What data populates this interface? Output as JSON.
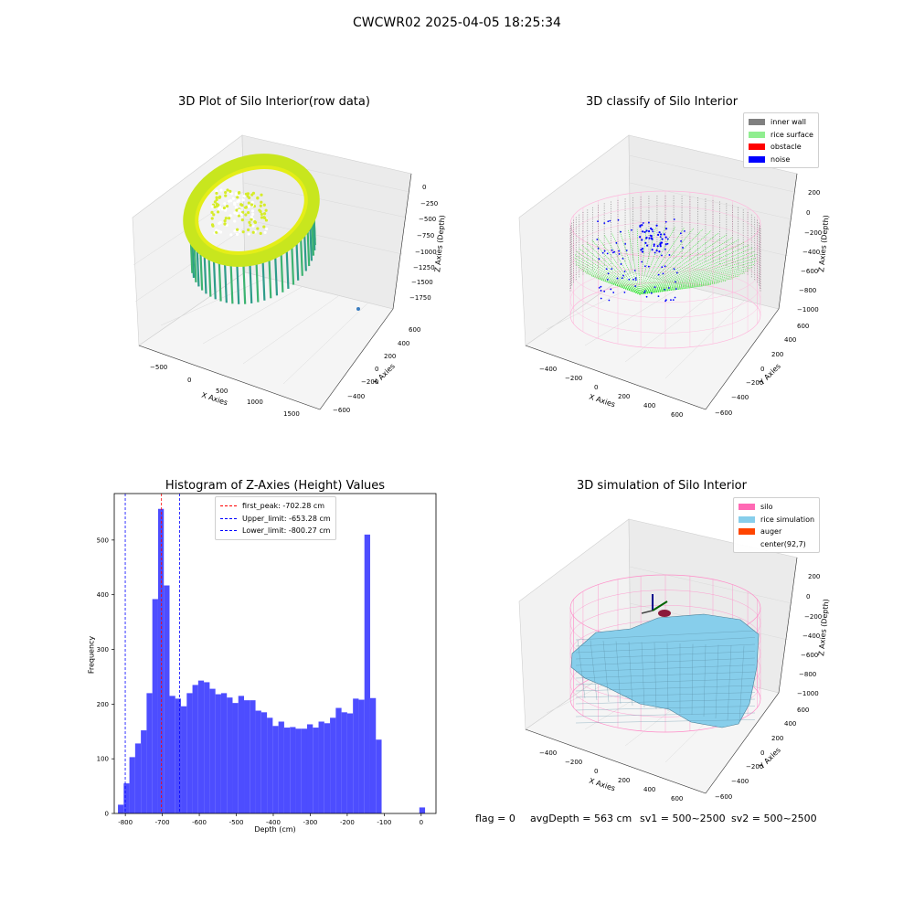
{
  "suptitle": "CWCWR02 2025-04-05 18:25:34",
  "panels": {
    "raw": {
      "title": "3D Plot of Silo Interior(row data)",
      "xlabel": "X Axies",
      "ylabel": "Y Axies",
      "zlabel": "Z Axies (Depth)",
      "xticks": [
        "−500",
        "0",
        "500",
        "1000",
        "1500"
      ],
      "yticks": [
        "600",
        "400",
        "200",
        "0",
        "−200",
        "−400",
        "−600"
      ],
      "zticks": [
        "0",
        "−250",
        "−500",
        "−750",
        "−1000",
        "−1250",
        "−1500",
        "−1750"
      ]
    },
    "classify": {
      "title": "3D classify of Silo Interior",
      "xlabel": "X Axies",
      "ylabel": "Y Axies",
      "zlabel": "Z Axies (Depth)",
      "xticks": [
        "−400",
        "−200",
        "0",
        "200",
        "400",
        "600"
      ],
      "yticks": [
        "600",
        "400",
        "200",
        "0",
        "−200",
        "−400",
        "−600"
      ],
      "zticks": [
        "200",
        "0",
        "−200",
        "−400",
        "−600",
        "−800",
        "−1000"
      ],
      "legend": [
        {
          "label": "inner wall",
          "color": "#808080"
        },
        {
          "label": "rice surface",
          "color": "#90ee90"
        },
        {
          "label": "obstacle",
          "color": "#ff0000"
        },
        {
          "label": "noise",
          "color": "#0000ff"
        }
      ]
    },
    "simulation": {
      "title": "3D simulation of Silo Interior",
      "xlabel": "X Axies",
      "ylabel": "Y Axies",
      "zlabel": "Z Axies (Depth)",
      "xticks": [
        "−400",
        "−200",
        "0",
        "200",
        "400",
        "600"
      ],
      "yticks": [
        "600",
        "400",
        "200",
        "0",
        "−200",
        "−400",
        "−600"
      ],
      "zticks": [
        "200",
        "0",
        "−200",
        "−400",
        "−600",
        "−800",
        "−1000"
      ],
      "legend": [
        {
          "label": "silo",
          "color": "#ff69b4"
        },
        {
          "label": "rice simulation",
          "color": "#87ceeb"
        },
        {
          "label": "auger",
          "color": "#ff4500"
        },
        {
          "label": "center(92,7)",
          "color": ""
        }
      ]
    }
  },
  "footer": {
    "flag": "flag = 0",
    "avg": "avgDepth = 563 cm",
    "sv1": "sv1 = 500~2500",
    "sv2": "sv2 = 500~2500"
  },
  "colors": {
    "bar": "#4d4dff",
    "wall": "#808080",
    "surface": "#32e632",
    "noise": "#0000ff",
    "silo": "#ff8cc8",
    "rice": "#87ceeb"
  },
  "chart_data": {
    "type": "bar",
    "title": "Histogram of Z-Axies (Height) Values",
    "xlabel": "Depth (cm)",
    "ylabel": "Frequency",
    "xlim": [
      -830,
      40
    ],
    "ylim": [
      0,
      585
    ],
    "xticks": [
      -800,
      -700,
      -600,
      -500,
      -400,
      -300,
      -200,
      -100,
      0
    ],
    "yticks": [
      0,
      100,
      200,
      300,
      400,
      500
    ],
    "bin_width": 15.5,
    "bin_starts": [
      -820,
      -804.5,
      -789,
      -773.5,
      -758,
      -742.5,
      -727,
      -711.5,
      -696,
      -680.5,
      -665,
      -649.5,
      -634,
      -618.5,
      -603,
      -587.5,
      -572,
      -556.5,
      -541,
      -525.5,
      -510,
      -494.5,
      -479,
      -463.5,
      -448,
      -432.5,
      -417,
      -401.5,
      -386,
      -370.5,
      -355,
      -339.5,
      -324,
      -308.5,
      -293,
      -277.5,
      -262,
      -246.5,
      -231,
      -215.5,
      -200,
      -184.5,
      -169,
      -153.5,
      -138,
      -122.5,
      -107,
      -91.5,
      -76,
      -60.5
    ],
    "values": [
      16,
      55,
      103,
      128,
      152,
      220,
      392,
      557,
      417,
      215,
      210,
      196,
      220,
      235,
      243,
      240,
      228,
      218,
      220,
      212,
      202,
      215,
      207,
      207,
      188,
      185,
      175,
      160,
      168,
      157,
      158,
      155,
      155,
      163,
      157,
      168,
      165,
      175,
      193,
      185,
      183,
      210,
      208,
      510,
      211,
      135,
      0,
      0,
      0,
      0
    ],
    "extra_bins": [
      {
        "start": -5,
        "value": 11
      }
    ],
    "vlines": [
      {
        "x": -702.28,
        "color": "#ff0000",
        "label": "first_peak: -702.28 cm"
      },
      {
        "x": -653.28,
        "color": "#0000ff",
        "label": "Upper_limit: -653.28 cm"
      },
      {
        "x": -800.27,
        "color": "#0000ff",
        "label": "Lower_limit: -800.27 cm"
      }
    ],
    "legend_position": "top-center",
    "grid": false
  }
}
